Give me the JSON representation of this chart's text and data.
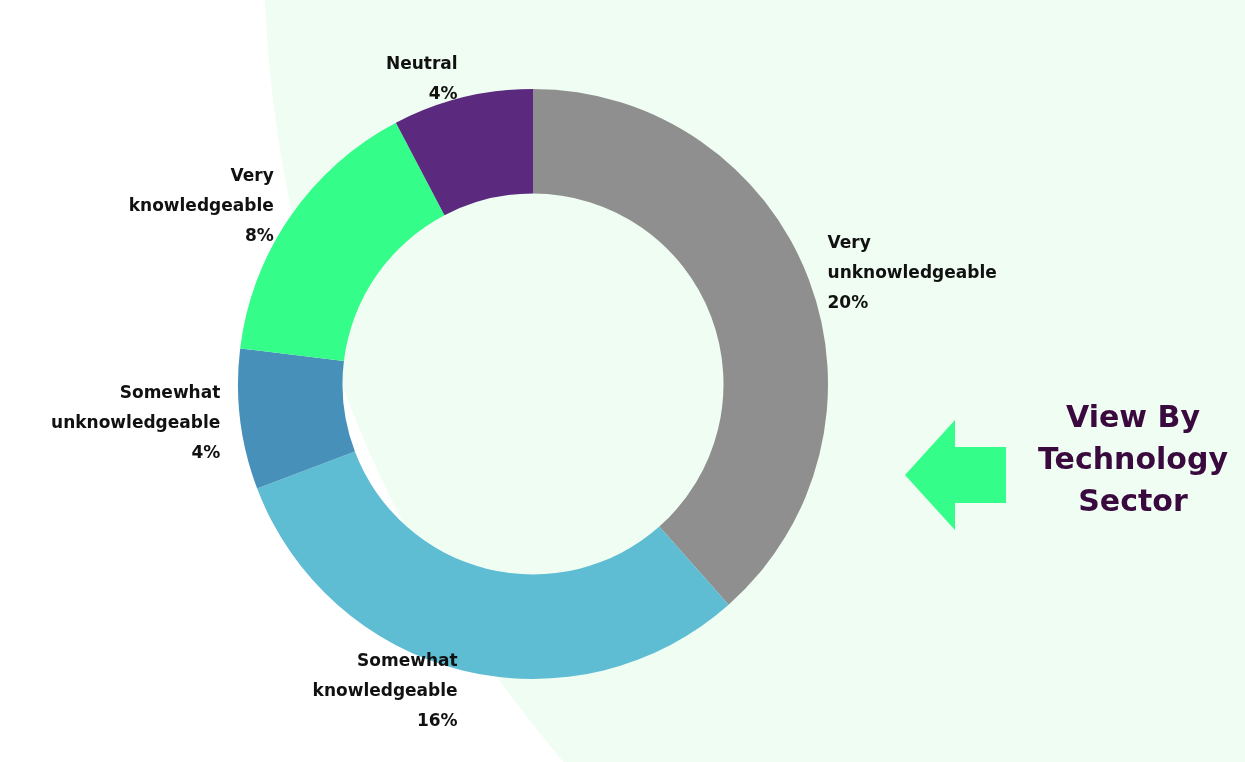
{
  "chart_data": {
    "type": "donut",
    "title": "View By Technology Sector",
    "categories": [
      "Very unknowledgeable",
      "Somewhat knowledgeable",
      "Somewhat unknowledgeable",
      "Very knowledgeable",
      "Neutral"
    ],
    "values": [
      20,
      16,
      4,
      8,
      4
    ],
    "value_labels": [
      "20%",
      "16%",
      "4%",
      "8%",
      "4%"
    ],
    "colors": [
      "#8f8f8f",
      "#5ebcd3",
      "#4690b9",
      "#34fd8a",
      "#5b2a7e"
    ],
    "legend": false
  }
}
